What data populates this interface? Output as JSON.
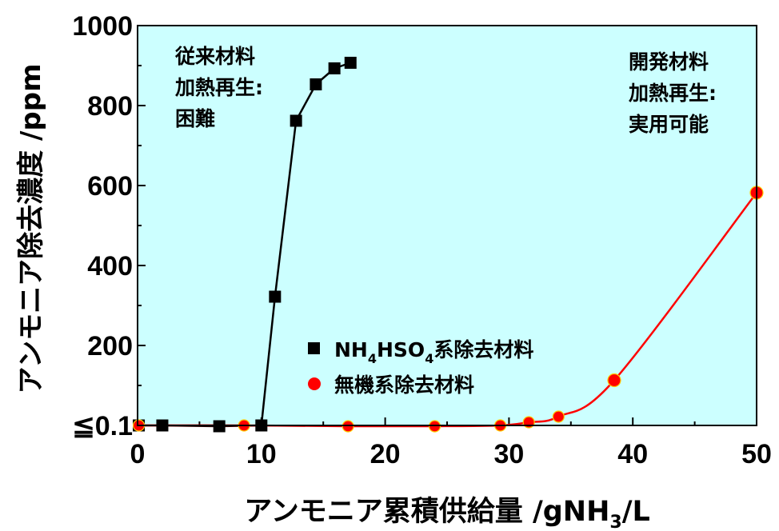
{
  "chart_data": {
    "type": "line",
    "xlabel_main": "アンモニア累積供給量 /gNH",
    "xlabel_sub": "3",
    "xlabel_tail": "/L",
    "ylabel": "アンモニア除去濃度 /ppm",
    "xlim": [
      0,
      50
    ],
    "ylim": [
      0,
      1000
    ],
    "x_ticks": [
      0,
      10,
      20,
      30,
      40,
      50
    ],
    "x_tick_labels": [
      "0",
      "10",
      "20",
      "30",
      "40",
      "50"
    ],
    "y_ticks": [
      0,
      200,
      400,
      600,
      800,
      1000
    ],
    "y_tick_labels": [
      "≦0.1",
      "200",
      "400",
      "600",
      "800",
      "1000"
    ],
    "background_color": "#ccffff",
    "annotations": {
      "left": [
        "従来材料",
        "加熱再生:",
        "困難"
      ],
      "right": [
        "開発材料",
        "加熱再生:",
        "実用可能"
      ]
    },
    "series": [
      {
        "legend_main": "NH",
        "legend_sub1": "4",
        "legend_mid": "HSO",
        "legend_sub2": "4",
        "legend_tail": "系除去材料",
        "color": "#000000",
        "marker": "square",
        "x": [
          0.1,
          2,
          6.6,
          10,
          11.1,
          12.8,
          14.4,
          15.9,
          17.2
        ],
        "y": [
          0,
          0,
          -2,
          0,
          322,
          762,
          853,
          893,
          907
        ]
      },
      {
        "legend_text": "無機系除去材料",
        "color": "#ff0000",
        "marker": "circle",
        "x": [
          0.1,
          8.6,
          17,
          24,
          29.3,
          31.6,
          34,
          38.5,
          50
        ],
        "y": [
          0,
          0,
          -2,
          -2,
          0,
          8,
          22,
          113,
          582
        ]
      }
    ]
  }
}
